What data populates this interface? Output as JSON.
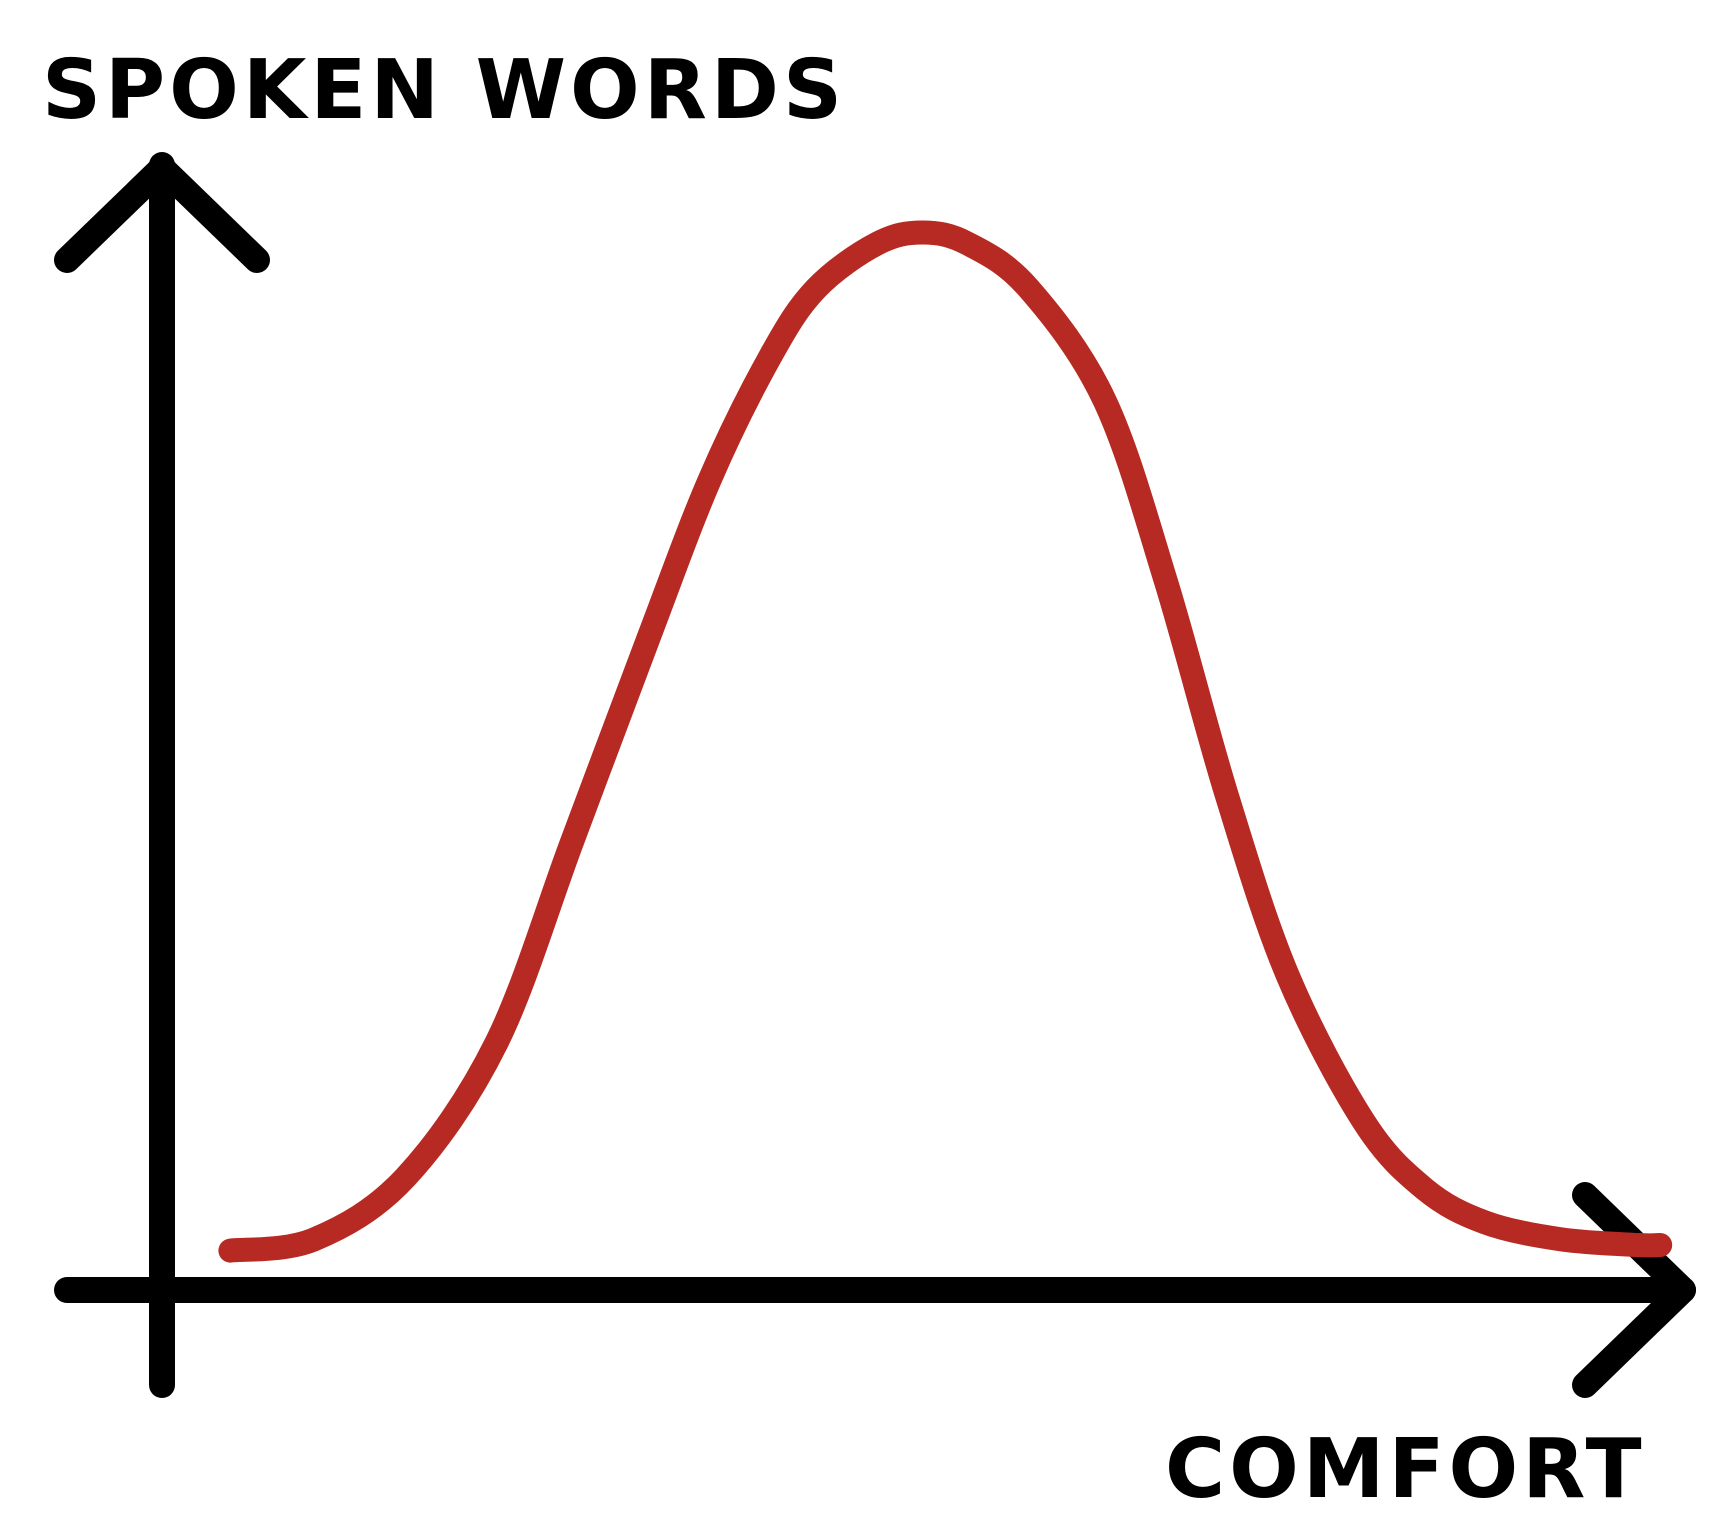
{
  "chart_data": {
    "type": "line",
    "title": "",
    "xlabel": "COMFORT",
    "ylabel": "SPOKEN WORDS",
    "grid": false,
    "legend": "none",
    "ticks": "none",
    "xlim": [
      0,
      1
    ],
    "ylim": [
      0,
      1
    ],
    "series": [
      {
        "color": "#b72a24",
        "x": [
          0.045,
          0.1,
          0.16,
          0.22,
          0.27,
          0.32,
          0.36,
          0.4,
          0.43,
          0.47,
          0.5,
          0.53,
          0.57,
          0.62,
          0.66,
          0.7,
          0.74,
          0.79,
          0.83,
          0.87,
          0.92,
          0.97,
          0.985
        ],
        "y": [
          0.035,
          0.045,
          0.1,
          0.22,
          0.4,
          0.58,
          0.72,
          0.83,
          0.89,
          0.93,
          0.94,
          0.93,
          0.89,
          0.79,
          0.63,
          0.44,
          0.28,
          0.15,
          0.09,
          0.06,
          0.045,
          0.04,
          0.04
        ]
      }
    ]
  },
  "colors": {
    "axis": "#000000",
    "curve": "#b72a24",
    "background": "#ffffff"
  }
}
